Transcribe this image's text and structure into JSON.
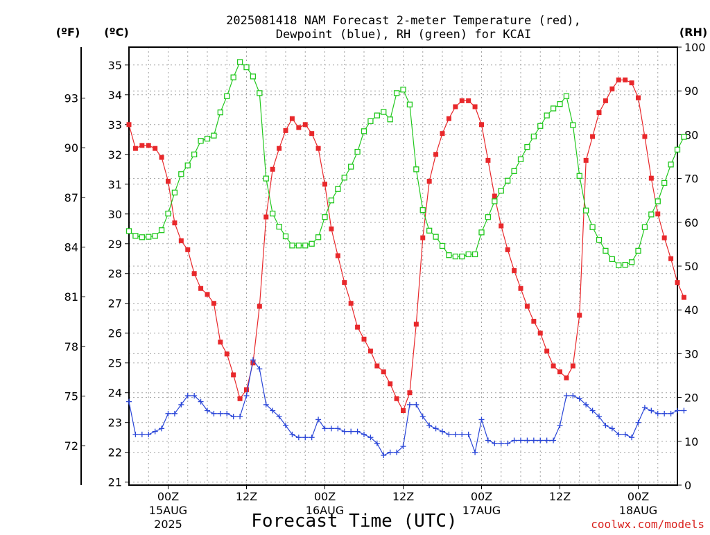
{
  "chart_data": {
    "type": "line",
    "title_line1": "2025081418 NAM Forecast 2-meter Temperature (red),",
    "title_line2": "Dewpoint (blue), RH (green) for KCAI",
    "xlabel": "Forecast Time (UTC)",
    "credit": "coolwx.com/models",
    "unit_f": "(ºF)",
    "unit_c": "(ºC)",
    "unit_rh": "(RH)",
    "grid": true,
    "x_unit": "forecast hour",
    "xlim": [
      0,
      84
    ],
    "ylim_c": [
      20.9,
      35.6
    ],
    "ylim_rh": [
      0,
      100
    ],
    "yticks_c": [
      "21",
      "22",
      "23",
      "24",
      "25",
      "26",
      "27",
      "28",
      "29",
      "30",
      "31",
      "32",
      "33",
      "34",
      "35"
    ],
    "yticks_f": [
      "72",
      "75",
      "78",
      "81",
      "84",
      "87",
      "90",
      "93"
    ],
    "yticks_rh": [
      "0",
      "10",
      "20",
      "30",
      "40",
      "50",
      "60",
      "70",
      "80",
      "90",
      "100"
    ],
    "x_ticks": [
      {
        "hour": 6,
        "label": "00Z",
        "sub1": "15AUG",
        "sub2": "2025"
      },
      {
        "hour": 18,
        "label": "12Z",
        "sub1": "",
        "sub2": ""
      },
      {
        "hour": 30,
        "label": "00Z",
        "sub1": "16AUG",
        "sub2": ""
      },
      {
        "hour": 42,
        "label": "12Z",
        "sub1": "",
        "sub2": ""
      },
      {
        "hour": 54,
        "label": "00Z",
        "sub1": "17AUG",
        "sub2": ""
      },
      {
        "hour": 66,
        "label": "12Z",
        "sub1": "",
        "sub2": ""
      },
      {
        "hour": 78,
        "label": "00Z",
        "sub1": "18AUG",
        "sub2": ""
      }
    ],
    "series": [
      {
        "color": "#e8282b",
        "marker": "filled-square",
        "axis": "c",
        "values": [
          33.0,
          32.2,
          32.3,
          32.3,
          32.2,
          31.9,
          31.1,
          29.7,
          29.1,
          28.8,
          28.0,
          27.5,
          27.3,
          27.0,
          25.7,
          25.3,
          24.6,
          23.8,
          24.1,
          25.0,
          26.9,
          29.9,
          31.5,
          32.2,
          32.8,
          33.2,
          32.9,
          33.0,
          32.7,
          32.2,
          31.0,
          29.5,
          28.6,
          27.7,
          27.0,
          26.2,
          25.8,
          25.4,
          24.9,
          24.7,
          24.3,
          23.8,
          23.4,
          24.0,
          26.3,
          29.2,
          31.1,
          32.0,
          32.7,
          33.2,
          33.6,
          33.8,
          33.8,
          33.6,
          33.0,
          31.8,
          30.6,
          29.6,
          28.8,
          28.1,
          27.5,
          26.9,
          26.4,
          26.0,
          25.4,
          24.9,
          24.7,
          24.5,
          24.9,
          26.6,
          31.8,
          32.6,
          33.4,
          33.8,
          34.2,
          34.5,
          34.5,
          34.4,
          33.9,
          32.6,
          31.2,
          30.0,
          29.2,
          28.5,
          27.7,
          27.2
        ]
      },
      {
        "color": "#2a46d8",
        "marker": "plus",
        "axis": "c",
        "values": [
          23.7,
          22.6,
          22.6,
          22.6,
          22.7,
          22.8,
          23.3,
          23.3,
          23.6,
          23.9,
          23.9,
          23.7,
          23.4,
          23.3,
          23.3,
          23.3,
          23.2,
          23.2,
          23.9,
          25.1,
          24.8,
          23.6,
          23.4,
          23.2,
          22.9,
          22.6,
          22.5,
          22.5,
          22.5,
          23.1,
          22.8,
          22.8,
          22.8,
          22.7,
          22.7,
          22.7,
          22.6,
          22.5,
          22.3,
          21.9,
          22.0,
          22.0,
          22.2,
          23.6,
          23.6,
          23.2,
          22.9,
          22.8,
          22.7,
          22.6,
          22.6,
          22.6,
          22.6,
          22.0,
          23.1,
          22.4,
          22.3,
          22.3,
          22.3,
          22.4,
          22.4,
          22.4,
          22.4,
          22.4,
          22.4,
          22.4,
          22.9,
          23.9,
          23.9,
          23.8,
          23.6,
          23.4,
          23.2,
          22.9,
          22.8,
          22.6,
          22.6,
          22.5,
          23.0,
          23.5,
          23.4,
          23.3,
          23.3,
          23.3,
          23.4,
          23.4
        ]
      },
      {
        "color": "#22c81e",
        "marker": "open-square",
        "axis": "rh",
        "values": [
          58.0,
          56.9,
          56.6,
          56.7,
          56.9,
          58.2,
          62.0,
          66.8,
          71.0,
          73.0,
          75.5,
          78.6,
          79.1,
          79.8,
          85.1,
          88.8,
          93.1,
          96.6,
          95.4,
          93.3,
          89.5,
          70.0,
          62.0,
          59.0,
          56.8,
          54.7,
          54.7,
          54.7,
          55.1,
          56.6,
          61.2,
          65.0,
          67.6,
          70.2,
          72.7,
          76.1,
          80.8,
          83.1,
          84.4,
          85.2,
          83.5,
          89.5,
          90.3,
          86.9,
          72.1,
          62.8,
          58.1,
          56.7,
          54.6,
          52.5,
          52.2,
          52.2,
          52.7,
          52.7,
          57.7,
          61.2,
          64.8,
          67.2,
          69.5,
          71.7,
          74.4,
          77.2,
          79.6,
          82.0,
          84.4,
          86.0,
          87.0,
          88.8,
          82.2,
          70.6,
          62.7,
          58.9,
          56.0,
          53.5,
          51.6,
          50.2,
          50.3,
          50.9,
          53.5,
          58.9,
          61.8,
          64.8,
          69.0,
          73.2,
          76.6,
          79.5
        ]
      }
    ]
  }
}
